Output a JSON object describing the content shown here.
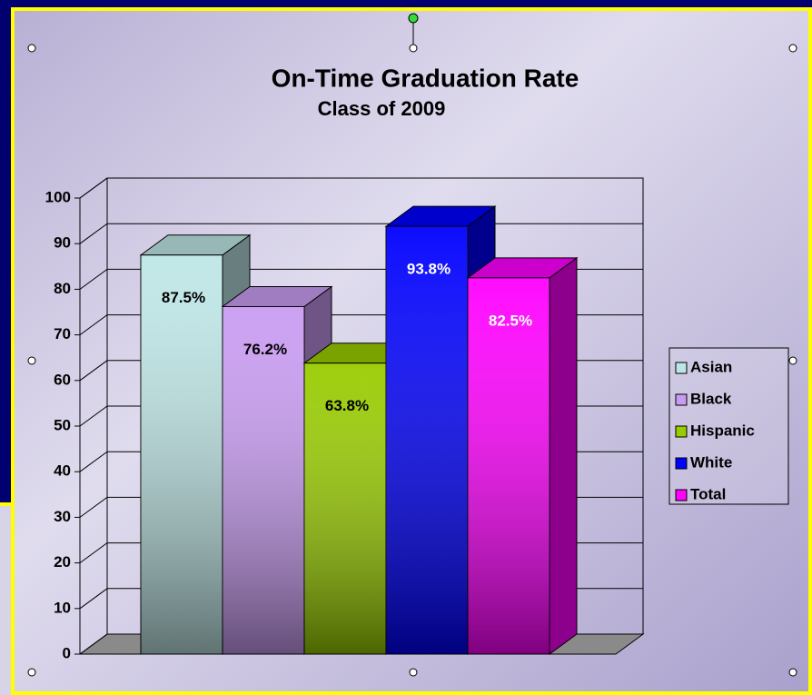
{
  "chart_data": {
    "type": "bar3d",
    "title": "On-Time Graduation Rate",
    "subtitle": "Class of 2009",
    "series": [
      {
        "name": "Asian",
        "color": "#bfe6e6",
        "label_color": "#000000",
        "values": [
          87.5
        ],
        "value_labels": [
          "87.5%"
        ]
      },
      {
        "name": "Black",
        "color": "#c99cf2",
        "label_color": "#000000",
        "values": [
          76.2
        ],
        "value_labels": [
          "76.2%"
        ]
      },
      {
        "name": "Hispanic",
        "color": "#99cc00",
        "label_color": "#000000",
        "values": [
          63.8
        ],
        "value_labels": [
          "63.8%"
        ]
      },
      {
        "name": "White",
        "color": "#0000ff",
        "label_color": "#ffffff",
        "values": [
          93.8
        ],
        "value_labels": [
          "93.8%"
        ]
      },
      {
        "name": "Total",
        "color": "#ff00ff",
        "label_color": "#ffffff",
        "values": [
          82.5
        ],
        "value_labels": [
          "82.5%"
        ]
      }
    ],
    "ylim": [
      0,
      100
    ],
    "yticks": [
      0,
      10,
      20,
      30,
      40,
      50,
      60,
      70,
      80,
      90,
      100
    ],
    "grid": true,
    "legend": "right"
  }
}
